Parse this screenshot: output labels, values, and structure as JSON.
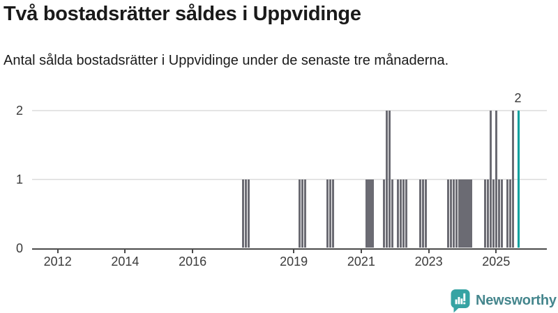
{
  "header": {
    "title": "Två bostadsrätter såldes i Uppvidinge",
    "subtitle": "Antal sålda bostadsrätter i Uppvidinge under de senaste tre månaderna."
  },
  "footer": {
    "brand": "Newsworthy"
  },
  "colors": {
    "bar": "#6b6b73",
    "highlight": "#00a09e",
    "gridline": "#e4e4e4",
    "axis": "#4a4a4a",
    "label": "#3a3a3a",
    "title_text": "#1a1a1a",
    "logo_bubble": "#36a3a3",
    "logo_text": "#45868d"
  },
  "chart_data": {
    "type": "bar",
    "title": "Två bostadsrätter såldes i Uppvidinge",
    "xlabel": "",
    "ylabel": "",
    "x_ticks": [
      "2012",
      "2014",
      "2016",
      "2019",
      "2021",
      "2023",
      "2025"
    ],
    "y_ticks": [
      0,
      1,
      2
    ],
    "ylim": [
      0,
      2
    ],
    "grid": "horizontal",
    "legend": "none",
    "points": [
      {
        "month": "2017-07",
        "value": 1
      },
      {
        "month": "2017-08",
        "value": 1
      },
      {
        "month": "2017-09",
        "value": 1
      },
      {
        "month": "2019-03",
        "value": 1
      },
      {
        "month": "2019-04",
        "value": 1
      },
      {
        "month": "2019-05",
        "value": 1
      },
      {
        "month": "2020-01",
        "value": 1
      },
      {
        "month": "2020-02",
        "value": 1
      },
      {
        "month": "2020-03",
        "value": 1
      },
      {
        "month": "2021-03",
        "value": 1
      },
      {
        "month": "2021-04",
        "value": 1
      },
      {
        "month": "2021-05",
        "value": 1
      },
      {
        "month": "2021-09",
        "value": 1
      },
      {
        "month": "2021-10",
        "value": 2
      },
      {
        "month": "2021-11",
        "value": 2
      },
      {
        "month": "2021-12",
        "value": 1
      },
      {
        "month": "2022-02",
        "value": 1
      },
      {
        "month": "2022-03",
        "value": 1
      },
      {
        "month": "2022-04",
        "value": 1
      },
      {
        "month": "2022-05",
        "value": 1
      },
      {
        "month": "2022-10",
        "value": 1
      },
      {
        "month": "2022-11",
        "value": 1
      },
      {
        "month": "2022-12",
        "value": 1
      },
      {
        "month": "2023-08",
        "value": 1
      },
      {
        "month": "2023-09",
        "value": 1
      },
      {
        "month": "2023-10",
        "value": 1
      },
      {
        "month": "2023-11",
        "value": 1
      },
      {
        "month": "2023-12",
        "value": 1
      },
      {
        "month": "2024-01",
        "value": 1
      },
      {
        "month": "2024-02",
        "value": 1
      },
      {
        "month": "2024-03",
        "value": 1
      },
      {
        "month": "2024-04",
        "value": 1
      },
      {
        "month": "2024-09",
        "value": 1
      },
      {
        "month": "2024-10",
        "value": 1
      },
      {
        "month": "2024-11",
        "value": 2
      },
      {
        "month": "2024-12",
        "value": 1
      },
      {
        "month": "2025-01",
        "value": 2
      },
      {
        "month": "2025-02",
        "value": 1
      },
      {
        "month": "2025-03",
        "value": 1
      },
      {
        "month": "2025-05",
        "value": 1
      },
      {
        "month": "2025-06",
        "value": 1
      },
      {
        "month": "2025-07",
        "value": 2
      },
      {
        "month": "2025-09",
        "value": 2
      }
    ],
    "highlight": {
      "month": "2025-09",
      "value": 2,
      "label": "2"
    }
  }
}
